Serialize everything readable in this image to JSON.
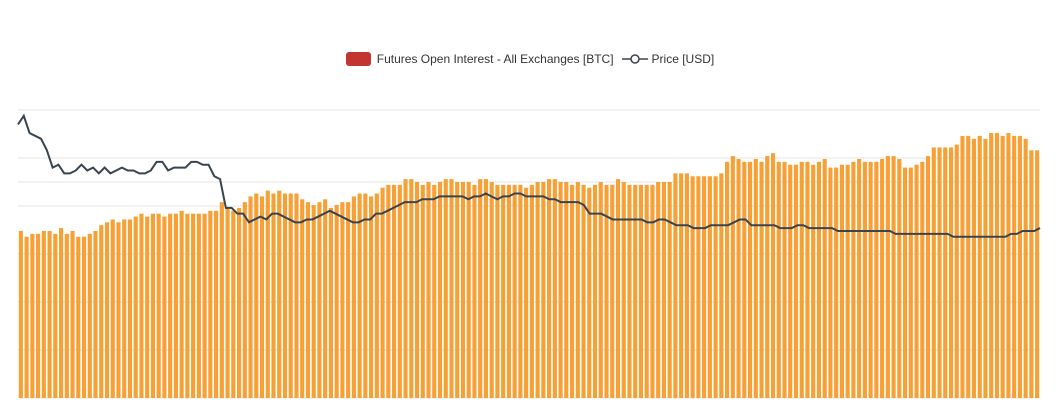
{
  "legend": {
    "open_interest_label": "Futures Open Interest - All Exchanges [BTC]",
    "price_label": "Price [USD]"
  },
  "colors": {
    "legend_bar_swatch": "#c23531",
    "bars": "#f7a035",
    "line": "#38444f",
    "grid": "#e6e6e6"
  },
  "chart_data": {
    "type": "bar",
    "title": "",
    "xlabel": "",
    "ylabel": "",
    "legend_position": "top-center",
    "grid": true,
    "axis_labels_visible": false,
    "ylim": [
      0,
      100
    ],
    "series": [
      {
        "name": "Futures Open Interest - All Exchanges [BTC]",
        "type": "bar",
        "values": [
          58,
          56,
          57,
          57,
          58,
          58,
          57,
          59,
          57,
          58,
          56,
          56,
          57,
          58,
          60,
          61,
          62,
          61,
          62,
          62,
          63,
          64,
          63,
          64,
          64,
          63,
          64,
          64,
          65,
          64,
          64,
          64,
          64,
          65,
          65,
          68,
          66,
          65,
          66,
          68,
          70,
          71,
          70,
          72,
          71,
          72,
          71,
          71,
          71,
          69,
          68,
          67,
          68,
          69,
          66,
          67,
          68,
          68,
          70,
          71,
          71,
          70,
          71,
          73,
          74,
          74,
          74,
          76,
          76,
          75,
          74,
          75,
          74,
          75,
          76,
          76,
          75,
          75,
          75,
          74,
          76,
          76,
          75,
          74,
          74,
          74,
          74,
          74,
          73,
          74,
          75,
          75,
          76,
          76,
          75,
          75,
          74,
          75,
          74,
          73,
          74,
          75,
          74,
          74,
          76,
          75,
          74,
          74,
          74,
          74,
          74,
          75,
          75,
          75,
          78,
          78,
          78,
          77,
          77,
          77,
          77,
          77,
          78,
          82,
          84,
          83,
          82,
          82,
          83,
          82,
          84,
          85,
          82,
          82,
          81,
          81,
          82,
          82,
          81,
          82,
          83,
          80,
          80,
          81,
          81,
          82,
          83,
          82,
          82,
          82,
          83,
          84,
          84,
          83,
          80,
          80,
          81,
          82,
          84,
          87,
          87,
          87,
          87,
          88,
          91,
          91,
          90,
          91,
          90,
          92,
          92,
          91,
          92,
          91,
          91,
          90,
          86,
          86
        ]
      },
      {
        "name": "Price [USD]",
        "type": "line",
        "values": [
          95,
          98,
          92,
          91,
          90,
          86,
          80,
          81,
          78,
          78,
          79,
          81,
          79,
          80,
          78,
          80,
          78,
          79,
          80,
          79,
          79,
          78,
          78,
          79,
          82,
          82,
          79,
          80,
          80,
          80,
          82,
          82,
          81,
          81,
          77,
          76,
          66,
          66,
          64,
          64,
          61,
          62,
          63,
          62,
          64,
          64,
          63,
          62,
          61,
          61,
          62,
          62,
          63,
          64,
          65,
          64,
          63,
          62,
          61,
          61,
          62,
          62,
          64,
          64,
          65,
          66,
          67,
          68,
          68,
          68,
          69,
          69,
          69,
          70,
          70,
          70,
          70,
          70,
          69,
          70,
          70,
          71,
          70,
          69,
          70,
          70,
          71,
          71,
          70,
          70,
          70,
          70,
          69,
          69,
          68,
          68,
          68,
          68,
          67,
          64,
          64,
          64,
          63,
          62,
          62,
          62,
          62,
          62,
          62,
          61,
          61,
          62,
          62,
          61,
          60,
          60,
          60,
          59,
          59,
          59,
          60,
          60,
          60,
          60,
          61,
          62,
          62,
          60,
          60,
          60,
          60,
          60,
          59,
          59,
          59,
          60,
          60,
          59,
          59,
          59,
          59,
          59,
          58,
          58,
          58,
          58,
          58,
          58,
          58,
          58,
          58,
          58,
          57,
          57,
          57,
          57,
          57,
          57,
          57,
          57,
          57,
          57,
          56,
          56,
          56,
          56,
          56,
          56,
          56,
          56,
          56,
          56,
          57,
          57,
          58,
          58,
          58,
          59
        ]
      }
    ]
  }
}
